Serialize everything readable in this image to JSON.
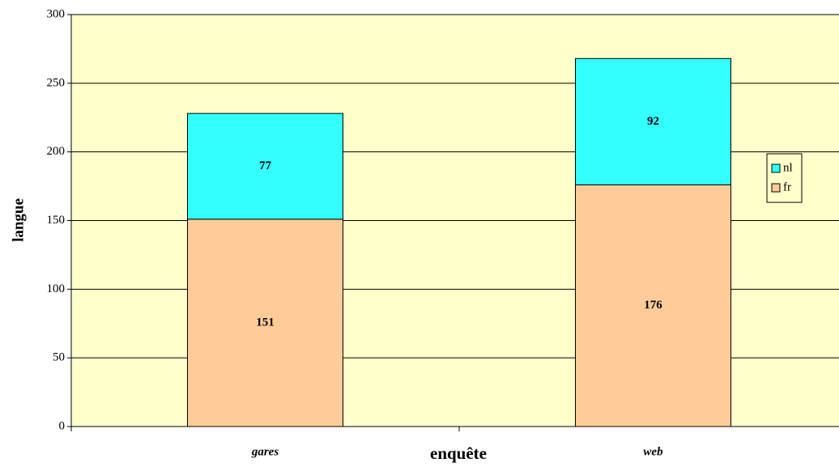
{
  "chart_data": {
    "type": "stacked_bar",
    "categories": [
      "gares",
      "web"
    ],
    "series": [
      {
        "name": "fr",
        "color": "#ffcc99",
        "values": [
          151,
          176
        ]
      },
      {
        "name": "nl",
        "color": "#33ffff",
        "values": [
          77,
          92
        ]
      }
    ],
    "xlabel": "enquête",
    "ylabel": "langue",
    "ylim": [
      0,
      300
    ],
    "yticks": [
      0,
      50,
      100,
      150,
      200,
      250,
      300
    ],
    "grid": true,
    "legend": "right",
    "plot_background": "#ffffcc"
  }
}
